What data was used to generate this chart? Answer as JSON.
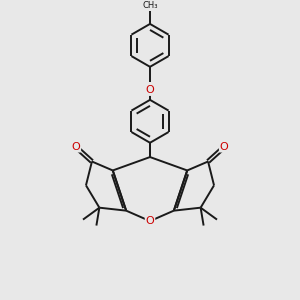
{
  "bg_color": "#e8e8e8",
  "bond_color": "#1a1a1a",
  "oxygen_color": "#cc0000",
  "line_width": 1.4,
  "figsize": [
    3.0,
    3.0
  ],
  "dpi": 100,
  "xlim": [
    0,
    10
  ],
  "ylim": [
    0,
    10
  ]
}
